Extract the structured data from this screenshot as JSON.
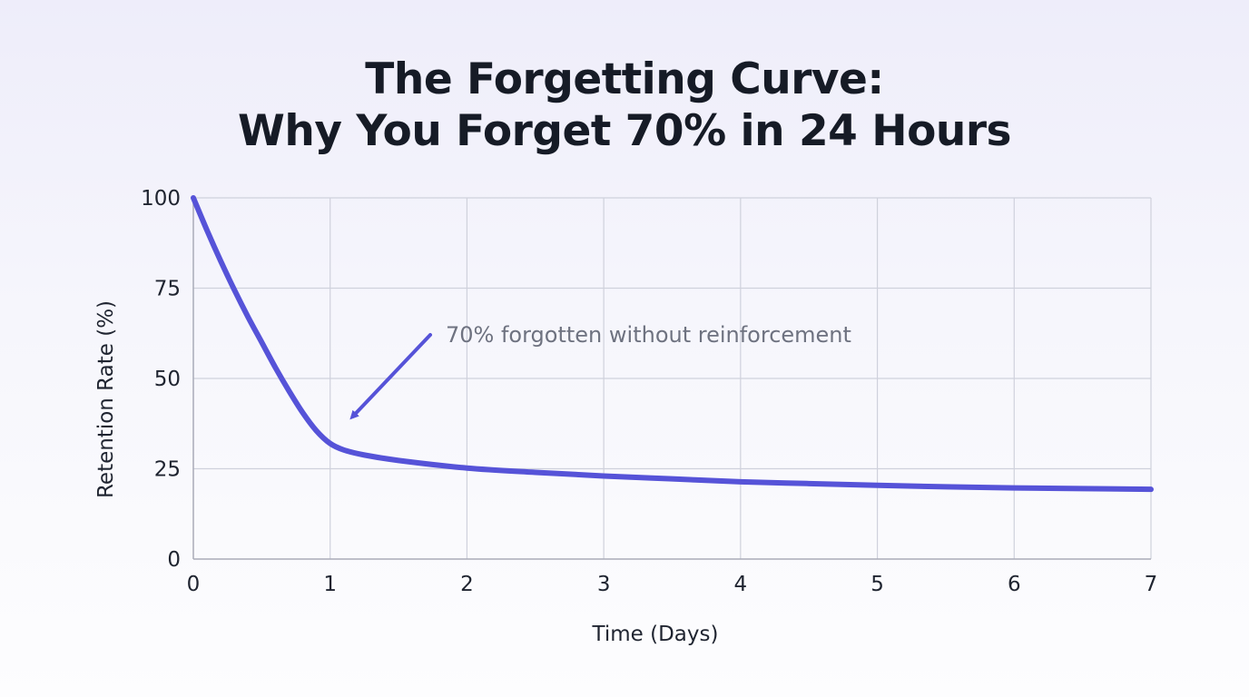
{
  "title_lines": [
    "The Forgetting Curve:",
    "Why You Forget 70% in 24 Hours"
  ],
  "colors": {
    "curve": "#5653d8",
    "grid": "#cfd1dc",
    "axis": "#a9abb8",
    "annotation_arrow": "#5653d8"
  },
  "chart_data": {
    "type": "line",
    "title": "The Forgetting Curve: Why You Forget 70% in 24 Hours",
    "xlabel": "Time (Days)",
    "ylabel": "Retention Rate (%)",
    "xlim": [
      0,
      7
    ],
    "ylim": [
      0,
      100
    ],
    "x_ticks": [
      0,
      1,
      2,
      3,
      4,
      5,
      6,
      7
    ],
    "y_ticks": [
      0,
      25,
      50,
      75,
      100
    ],
    "grid": true,
    "series": [
      {
        "x": [
          0,
          0.1,
          0.2,
          0.3,
          0.4,
          0.5,
          0.6,
          0.7,
          0.8,
          0.9,
          1.0,
          1.1,
          1.25,
          1.5,
          2.0,
          2.5,
          3.0,
          3.5,
          4.0,
          4.5,
          5.0,
          5.5,
          6.0,
          6.5,
          7.0
        ],
        "y": [
          100,
          91,
          82.5,
          74.5,
          67,
          60,
          53,
          46.5,
          40.5,
          35.5,
          32,
          30.2,
          28.8,
          27.3,
          25.2,
          24.0,
          23.0,
          22.2,
          21.4,
          20.9,
          20.4,
          20.0,
          19.7,
          19.5,
          19.3
        ]
      }
    ],
    "annotations": [
      {
        "text": "70% forgotten without reinforcement",
        "points_to": {
          "x": 1.1,
          "y": 37
        }
      }
    ]
  }
}
